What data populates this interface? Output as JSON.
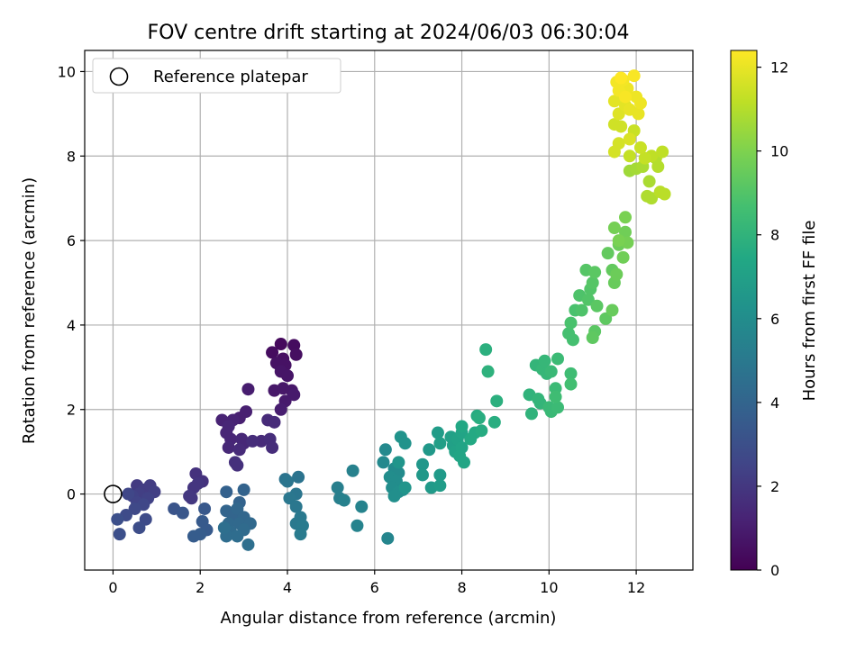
{
  "chart_data": {
    "type": "scatter",
    "title": "FOV centre drift starting at 2024/06/03 06:30:04",
    "xlabel": "Angular distance from reference (arcmin)",
    "ylabel": "Rotation from reference (arcmin)",
    "xlim": [
      -0.65,
      13.3
    ],
    "ylim": [
      -1.8,
      10.5
    ],
    "x_ticks": [
      0,
      2,
      4,
      6,
      8,
      10,
      12
    ],
    "y_ticks": [
      0,
      2,
      4,
      6,
      8,
      10
    ],
    "grid": true,
    "legend": {
      "position": "top-left",
      "entries": [
        "Reference platepar"
      ]
    },
    "reference_point": {
      "x": 0,
      "y": 0
    },
    "colorbar": {
      "label": "Hours from first FF file",
      "colormap": "viridis",
      "range": [
        0,
        12.4
      ],
      "ticks": [
        0,
        2,
        4,
        6,
        8,
        10,
        12
      ]
    },
    "points": [
      {
        "x": 3.85,
        "y": 3.55,
        "c": 0.3
      },
      {
        "x": 4.15,
        "y": 3.52,
        "c": 0.4
      },
      {
        "x": 3.65,
        "y": 3.35,
        "c": 0.4
      },
      {
        "x": 4.2,
        "y": 3.3,
        "c": 0.5
      },
      {
        "x": 3.9,
        "y": 3.2,
        "c": 0.5
      },
      {
        "x": 3.75,
        "y": 3.1,
        "c": 0.6
      },
      {
        "x": 3.95,
        "y": 3.05,
        "c": 0.6
      },
      {
        "x": 3.85,
        "y": 2.9,
        "c": 0.7
      },
      {
        "x": 4.0,
        "y": 2.8,
        "c": 0.7
      },
      {
        "x": 3.7,
        "y": 2.45,
        "c": 0.8
      },
      {
        "x": 3.9,
        "y": 2.5,
        "c": 0.8
      },
      {
        "x": 4.1,
        "y": 2.45,
        "c": 0.8
      },
      {
        "x": 4.15,
        "y": 2.35,
        "c": 0.9
      },
      {
        "x": 3.95,
        "y": 2.2,
        "c": 0.9
      },
      {
        "x": 3.85,
        "y": 2.0,
        "c": 1.0
      },
      {
        "x": 3.1,
        "y": 2.48,
        "c": 1.0
      },
      {
        "x": 3.05,
        "y": 1.95,
        "c": 1.1
      },
      {
        "x": 2.9,
        "y": 1.8,
        "c": 1.1
      },
      {
        "x": 2.75,
        "y": 1.75,
        "c": 1.2
      },
      {
        "x": 2.5,
        "y": 1.75,
        "c": 1.2
      },
      {
        "x": 2.65,
        "y": 1.6,
        "c": 1.3
      },
      {
        "x": 2.6,
        "y": 1.45,
        "c": 1.3
      },
      {
        "x": 2.7,
        "y": 1.3,
        "c": 1.3
      },
      {
        "x": 2.95,
        "y": 1.3,
        "c": 1.4
      },
      {
        "x": 3.0,
        "y": 1.2,
        "c": 1.4
      },
      {
        "x": 2.65,
        "y": 1.1,
        "c": 1.4
      },
      {
        "x": 2.9,
        "y": 1.05,
        "c": 1.5
      },
      {
        "x": 3.55,
        "y": 1.75,
        "c": 1.5
      },
      {
        "x": 3.7,
        "y": 1.7,
        "c": 1.5
      },
      {
        "x": 3.4,
        "y": 1.25,
        "c": 1.5
      },
      {
        "x": 3.6,
        "y": 1.3,
        "c": 1.6
      },
      {
        "x": 3.65,
        "y": 1.1,
        "c": 1.6
      },
      {
        "x": 3.2,
        "y": 1.25,
        "c": 1.6
      },
      {
        "x": 2.8,
        "y": 0.75,
        "c": 1.7
      },
      {
        "x": 2.85,
        "y": 0.68,
        "c": 1.7
      },
      {
        "x": 1.9,
        "y": 0.48,
        "c": 1.8
      },
      {
        "x": 2.05,
        "y": 0.3,
        "c": 1.8
      },
      {
        "x": 1.95,
        "y": 0.25,
        "c": 1.9
      },
      {
        "x": 1.85,
        "y": 0.15,
        "c": 1.9
      },
      {
        "x": 1.75,
        "y": -0.05,
        "c": 2.0
      },
      {
        "x": 1.8,
        "y": -0.1,
        "c": 2.0
      },
      {
        "x": 0.55,
        "y": 0.2,
        "c": 2.1
      },
      {
        "x": 0.7,
        "y": 0.1,
        "c": 2.2
      },
      {
        "x": 0.85,
        "y": 0.2,
        "c": 2.2
      },
      {
        "x": 0.95,
        "y": 0.05,
        "c": 2.3
      },
      {
        "x": 0.6,
        "y": 0.0,
        "c": 2.3
      },
      {
        "x": 0.45,
        "y": -0.05,
        "c": 2.4
      },
      {
        "x": 0.8,
        "y": -0.1,
        "c": 2.4
      },
      {
        "x": 0.55,
        "y": -0.2,
        "c": 2.5
      },
      {
        "x": 0.7,
        "y": -0.25,
        "c": 2.6
      },
      {
        "x": 0.35,
        "y": 0.0,
        "c": 2.6
      },
      {
        "x": 0.5,
        "y": -0.35,
        "c": 2.7
      },
      {
        "x": 0.3,
        "y": -0.5,
        "c": 2.8
      },
      {
        "x": 0.75,
        "y": -0.6,
        "c": 2.8
      },
      {
        "x": 0.6,
        "y": -0.8,
        "c": 2.9
      },
      {
        "x": 0.1,
        "y": -0.6,
        "c": 3.0
      },
      {
        "x": 0.15,
        "y": -0.95,
        "c": 3.0
      },
      {
        "x": 1.4,
        "y": -0.35,
        "c": 3.2
      },
      {
        "x": 1.6,
        "y": -0.45,
        "c": 3.3
      },
      {
        "x": 2.1,
        "y": -0.35,
        "c": 3.4
      },
      {
        "x": 2.05,
        "y": -0.65,
        "c": 3.5
      },
      {
        "x": 2.15,
        "y": -0.85,
        "c": 3.5
      },
      {
        "x": 1.85,
        "y": -1.0,
        "c": 3.6
      },
      {
        "x": 2.0,
        "y": -0.95,
        "c": 3.6
      },
      {
        "x": 2.6,
        "y": 0.05,
        "c": 3.8
      },
      {
        "x": 2.9,
        "y": -0.2,
        "c": 3.9
      },
      {
        "x": 3.0,
        "y": 0.1,
        "c": 3.9
      },
      {
        "x": 2.6,
        "y": -0.4,
        "c": 4.0
      },
      {
        "x": 2.75,
        "y": -0.5,
        "c": 4.0
      },
      {
        "x": 2.85,
        "y": -0.35,
        "c": 4.1
      },
      {
        "x": 3.0,
        "y": -0.55,
        "c": 4.1
      },
      {
        "x": 2.65,
        "y": -0.7,
        "c": 4.2
      },
      {
        "x": 2.9,
        "y": -0.7,
        "c": 4.2
      },
      {
        "x": 3.15,
        "y": -0.7,
        "c": 4.2
      },
      {
        "x": 2.7,
        "y": -0.9,
        "c": 4.3
      },
      {
        "x": 3.0,
        "y": -0.85,
        "c": 4.3
      },
      {
        "x": 2.6,
        "y": -1.0,
        "c": 4.4
      },
      {
        "x": 2.85,
        "y": -1.0,
        "c": 4.4
      },
      {
        "x": 3.1,
        "y": -1.2,
        "c": 4.5
      },
      {
        "x": 2.55,
        "y": -0.8,
        "c": 4.5
      },
      {
        "x": 3.95,
        "y": 0.35,
        "c": 4.7
      },
      {
        "x": 4.25,
        "y": 0.4,
        "c": 4.7
      },
      {
        "x": 4.0,
        "y": 0.3,
        "c": 4.8
      },
      {
        "x": 4.2,
        "y": 0.0,
        "c": 4.8
      },
      {
        "x": 4.05,
        "y": -0.1,
        "c": 4.9
      },
      {
        "x": 4.2,
        "y": -0.3,
        "c": 4.9
      },
      {
        "x": 4.3,
        "y": -0.55,
        "c": 5.0
      },
      {
        "x": 4.2,
        "y": -0.7,
        "c": 5.0
      },
      {
        "x": 4.35,
        "y": -0.75,
        "c": 5.1
      },
      {
        "x": 4.3,
        "y": -0.95,
        "c": 5.1
      },
      {
        "x": 5.15,
        "y": 0.15,
        "c": 5.3
      },
      {
        "x": 5.2,
        "y": -0.1,
        "c": 5.3
      },
      {
        "x": 5.3,
        "y": -0.15,
        "c": 5.4
      },
      {
        "x": 5.5,
        "y": 0.55,
        "c": 5.4
      },
      {
        "x": 5.7,
        "y": -0.3,
        "c": 5.5
      },
      {
        "x": 5.6,
        "y": -0.75,
        "c": 5.5
      },
      {
        "x": 6.3,
        "y": -1.05,
        "c": 5.6
      },
      {
        "x": 6.25,
        "y": 1.05,
        "c": 5.8
      },
      {
        "x": 6.2,
        "y": 0.75,
        "c": 5.8
      },
      {
        "x": 6.45,
        "y": 0.6,
        "c": 5.9
      },
      {
        "x": 6.55,
        "y": 0.5,
        "c": 5.9
      },
      {
        "x": 6.35,
        "y": 0.4,
        "c": 6.0
      },
      {
        "x": 6.5,
        "y": 0.3,
        "c": 6.0
      },
      {
        "x": 6.4,
        "y": 0.15,
        "c": 6.0
      },
      {
        "x": 6.55,
        "y": 0.05,
        "c": 6.1
      },
      {
        "x": 6.65,
        "y": 0.1,
        "c": 6.1
      },
      {
        "x": 6.45,
        "y": -0.05,
        "c": 6.1
      },
      {
        "x": 6.6,
        "y": 1.35,
        "c": 6.3
      },
      {
        "x": 6.7,
        "y": 1.2,
        "c": 6.3
      },
      {
        "x": 6.55,
        "y": 0.75,
        "c": 6.4
      },
      {
        "x": 6.7,
        "y": 0.15,
        "c": 6.4
      },
      {
        "x": 7.1,
        "y": 0.7,
        "c": 6.5
      },
      {
        "x": 7.1,
        "y": 0.45,
        "c": 6.6
      },
      {
        "x": 7.25,
        "y": 1.05,
        "c": 6.6
      },
      {
        "x": 7.3,
        "y": 0.15,
        "c": 6.7
      },
      {
        "x": 7.5,
        "y": 0.45,
        "c": 6.7
      },
      {
        "x": 7.5,
        "y": 0.2,
        "c": 6.8
      },
      {
        "x": 7.45,
        "y": 1.45,
        "c": 6.8
      },
      {
        "x": 7.5,
        "y": 1.2,
        "c": 6.9
      },
      {
        "x": 7.75,
        "y": 1.35,
        "c": 7.0
      },
      {
        "x": 7.8,
        "y": 1.15,
        "c": 7.0
      },
      {
        "x": 7.85,
        "y": 1.0,
        "c": 7.1
      },
      {
        "x": 7.9,
        "y": 1.3,
        "c": 7.1
      },
      {
        "x": 8.0,
        "y": 1.45,
        "c": 7.2
      },
      {
        "x": 8.0,
        "y": 1.1,
        "c": 7.2
      },
      {
        "x": 7.95,
        "y": 0.9,
        "c": 7.3
      },
      {
        "x": 8.05,
        "y": 0.75,
        "c": 7.3
      },
      {
        "x": 8.0,
        "y": 1.6,
        "c": 7.4
      },
      {
        "x": 8.2,
        "y": 1.3,
        "c": 7.5
      },
      {
        "x": 8.3,
        "y": 1.45,
        "c": 7.5
      },
      {
        "x": 8.35,
        "y": 1.85,
        "c": 7.6
      },
      {
        "x": 8.45,
        "y": 1.5,
        "c": 7.6
      },
      {
        "x": 8.4,
        "y": 1.8,
        "c": 7.7
      },
      {
        "x": 8.75,
        "y": 1.7,
        "c": 7.7
      },
      {
        "x": 8.8,
        "y": 2.2,
        "c": 7.8
      },
      {
        "x": 8.55,
        "y": 3.42,
        "c": 7.8
      },
      {
        "x": 8.6,
        "y": 2.9,
        "c": 7.9
      },
      {
        "x": 9.55,
        "y": 2.35,
        "c": 8.0
      },
      {
        "x": 9.6,
        "y": 1.9,
        "c": 8.0
      },
      {
        "x": 9.75,
        "y": 2.25,
        "c": 8.1
      },
      {
        "x": 9.8,
        "y": 2.15,
        "c": 8.1
      },
      {
        "x": 9.7,
        "y": 3.05,
        "c": 8.1
      },
      {
        "x": 9.85,
        "y": 2.95,
        "c": 8.2
      },
      {
        "x": 9.9,
        "y": 3.15,
        "c": 8.2
      },
      {
        "x": 9.95,
        "y": 2.85,
        "c": 8.2
      },
      {
        "x": 10.05,
        "y": 2.9,
        "c": 8.3
      },
      {
        "x": 10.0,
        "y": 2.05,
        "c": 8.3
      },
      {
        "x": 10.05,
        "y": 1.95,
        "c": 8.3
      },
      {
        "x": 10.2,
        "y": 3.2,
        "c": 8.4
      },
      {
        "x": 10.15,
        "y": 2.5,
        "c": 8.4
      },
      {
        "x": 10.2,
        "y": 2.05,
        "c": 8.4
      },
      {
        "x": 10.15,
        "y": 2.3,
        "c": 8.5
      },
      {
        "x": 10.5,
        "y": 2.85,
        "c": 8.5
      },
      {
        "x": 10.5,
        "y": 2.6,
        "c": 8.6
      },
      {
        "x": 10.45,
        "y": 3.8,
        "c": 8.7
      },
      {
        "x": 10.55,
        "y": 3.65,
        "c": 8.7
      },
      {
        "x": 10.5,
        "y": 4.05,
        "c": 8.8
      },
      {
        "x": 10.6,
        "y": 4.35,
        "c": 8.8
      },
      {
        "x": 10.7,
        "y": 4.7,
        "c": 8.9
      },
      {
        "x": 10.75,
        "y": 4.35,
        "c": 8.9
      },
      {
        "x": 10.9,
        "y": 4.6,
        "c": 9.0
      },
      {
        "x": 10.95,
        "y": 4.85,
        "c": 9.0
      },
      {
        "x": 11.0,
        "y": 5.0,
        "c": 9.1
      },
      {
        "x": 10.85,
        "y": 5.3,
        "c": 9.1
      },
      {
        "x": 11.05,
        "y": 5.25,
        "c": 9.2
      },
      {
        "x": 11.1,
        "y": 4.45,
        "c": 9.2
      },
      {
        "x": 11.05,
        "y": 3.85,
        "c": 9.2
      },
      {
        "x": 11.0,
        "y": 3.7,
        "c": 9.3
      },
      {
        "x": 11.3,
        "y": 4.15,
        "c": 9.3
      },
      {
        "x": 11.35,
        "y": 5.7,
        "c": 9.4
      },
      {
        "x": 11.45,
        "y": 5.3,
        "c": 9.4
      },
      {
        "x": 11.45,
        "y": 4.35,
        "c": 9.5
      },
      {
        "x": 11.5,
        "y": 5.0,
        "c": 9.5
      },
      {
        "x": 11.55,
        "y": 5.2,
        "c": 9.6
      },
      {
        "x": 11.6,
        "y": 5.9,
        "c": 9.6
      },
      {
        "x": 11.7,
        "y": 5.6,
        "c": 9.7
      },
      {
        "x": 11.75,
        "y": 6.2,
        "c": 9.7
      },
      {
        "x": 11.8,
        "y": 5.95,
        "c": 9.8
      },
      {
        "x": 11.5,
        "y": 6.3,
        "c": 9.8
      },
      {
        "x": 11.75,
        "y": 6.55,
        "c": 9.9
      },
      {
        "x": 11.6,
        "y": 6.0,
        "c": 9.9
      },
      {
        "x": 11.85,
        "y": 7.65,
        "c": 10.6
      },
      {
        "x": 12.0,
        "y": 7.7,
        "c": 10.7
      },
      {
        "x": 12.15,
        "y": 7.75,
        "c": 10.8
      },
      {
        "x": 12.3,
        "y": 7.4,
        "c": 10.8
      },
      {
        "x": 12.25,
        "y": 7.05,
        "c": 10.9
      },
      {
        "x": 12.35,
        "y": 7.0,
        "c": 10.9
      },
      {
        "x": 12.5,
        "y": 7.75,
        "c": 11.0
      },
      {
        "x": 12.45,
        "y": 7.95,
        "c": 11.0
      },
      {
        "x": 12.55,
        "y": 7.15,
        "c": 11.1
      },
      {
        "x": 12.65,
        "y": 7.1,
        "c": 11.1
      },
      {
        "x": 12.6,
        "y": 8.1,
        "c": 11.2
      },
      {
        "x": 12.35,
        "y": 8.0,
        "c": 11.2
      },
      {
        "x": 12.2,
        "y": 7.95,
        "c": 11.3
      },
      {
        "x": 11.85,
        "y": 8.0,
        "c": 11.3
      },
      {
        "x": 12.1,
        "y": 8.2,
        "c": 11.4
      },
      {
        "x": 11.95,
        "y": 8.6,
        "c": 11.4
      },
      {
        "x": 11.65,
        "y": 8.7,
        "c": 11.5
      },
      {
        "x": 11.5,
        "y": 8.75,
        "c": 11.5
      },
      {
        "x": 11.6,
        "y": 8.3,
        "c": 11.6
      },
      {
        "x": 11.5,
        "y": 8.1,
        "c": 11.6
      },
      {
        "x": 11.85,
        "y": 8.4,
        "c": 11.7
      },
      {
        "x": 11.6,
        "y": 9.0,
        "c": 11.8
      },
      {
        "x": 11.5,
        "y": 9.3,
        "c": 11.9
      },
      {
        "x": 11.75,
        "y": 9.2,
        "c": 11.9
      },
      {
        "x": 11.85,
        "y": 9.1,
        "c": 12.0
      },
      {
        "x": 12.05,
        "y": 9.0,
        "c": 12.0
      },
      {
        "x": 12.1,
        "y": 9.25,
        "c": 12.1
      },
      {
        "x": 12.0,
        "y": 9.4,
        "c": 12.1
      },
      {
        "x": 11.8,
        "y": 9.6,
        "c": 12.1
      },
      {
        "x": 11.6,
        "y": 9.55,
        "c": 12.2
      },
      {
        "x": 11.55,
        "y": 9.75,
        "c": 12.2
      },
      {
        "x": 11.7,
        "y": 9.8,
        "c": 12.2
      },
      {
        "x": 11.95,
        "y": 9.9,
        "c": 12.3
      },
      {
        "x": 11.75,
        "y": 9.4,
        "c": 12.3
      },
      {
        "x": 11.65,
        "y": 9.85,
        "c": 12.4
      }
    ]
  }
}
